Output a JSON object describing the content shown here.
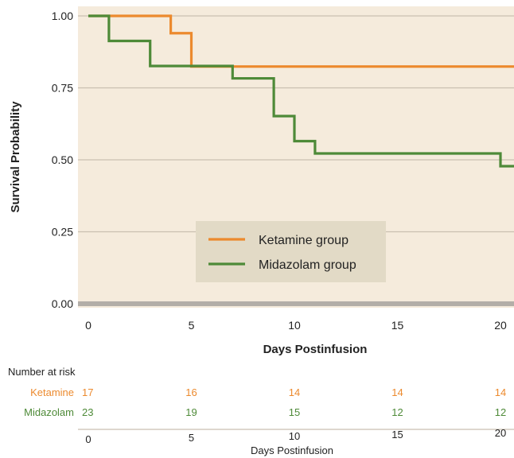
{
  "chart_data": {
    "type": "line",
    "subtype": "kaplan-meier step",
    "title": "",
    "xlabel": "Days Postinfusion",
    "ylabel": "Survival Probability",
    "xlim": [
      0,
      21
    ],
    "ylim": [
      0,
      1
    ],
    "x_ticks": [
      "0",
      "5",
      "10",
      "15",
      "20"
    ],
    "x_tick_values": [
      0,
      5,
      10,
      15,
      20
    ],
    "y_ticks": [
      "0.00",
      "0.25",
      "0.50",
      "0.75",
      "1.00"
    ],
    "y_tick_values": [
      0,
      0.25,
      0.5,
      0.75,
      1
    ],
    "grid": "horizontal",
    "legend_position": "center-bottom",
    "background_color": "#f5ebdc",
    "series": [
      {
        "name": "Ketamine group",
        "color": "#ec8a2e",
        "steps": [
          [
            0,
            1.0
          ],
          [
            4,
            0.94
          ],
          [
            5,
            0.824
          ],
          [
            21,
            0.824
          ]
        ]
      },
      {
        "name": "Midazolam group",
        "color": "#4e8a38",
        "steps": [
          [
            0,
            1.0
          ],
          [
            1,
            0.913
          ],
          [
            3,
            0.826
          ],
          [
            7,
            0.783
          ],
          [
            9,
            0.652
          ],
          [
            10,
            0.565
          ],
          [
            11,
            0.522
          ],
          [
            20,
            0.478
          ],
          [
            21,
            0.478
          ]
        ]
      }
    ]
  },
  "risk_table": {
    "title": "Number at risk",
    "x_ticks": [
      "0",
      "5",
      "10",
      "15",
      "20"
    ],
    "xlabel": "Days Postinfusion",
    "rows": [
      {
        "label": "Ketamine",
        "color": "#ec8a2e",
        "values": [
          "17",
          "16",
          "14",
          "14",
          "14"
        ]
      },
      {
        "label": "Midazolam",
        "color": "#4e8a38",
        "values": [
          "23",
          "19",
          "15",
          "12",
          "12"
        ]
      }
    ]
  }
}
